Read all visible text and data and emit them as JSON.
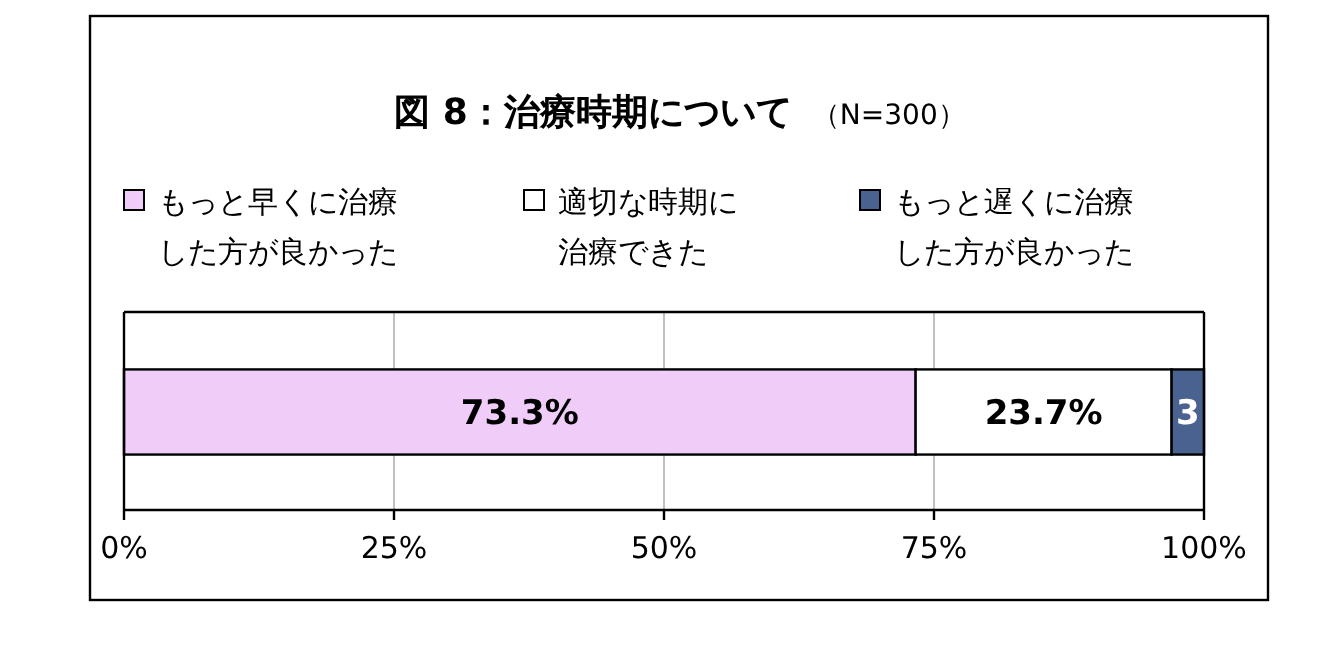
{
  "chart_data": {
    "type": "bar",
    "orientation": "horizontal",
    "stacked": true,
    "title": "図 8：治療時期について",
    "subtitle": "（N=300）",
    "categories": [
      null
    ],
    "series": [
      {
        "name": "もっと早くに治療した方が良かった",
        "color": "#f0ccf8",
        "values": [
          73.3
        ],
        "value_labels": [
          "73.3%"
        ]
      },
      {
        "name": "適切な時期に治療できた",
        "color": "#ffffff",
        "values": [
          23.7
        ],
        "value_labels": [
          "23.7%"
        ]
      },
      {
        "name": "もっと遅くに治療した方が良かった",
        "color": "#4a6290",
        "values": [
          3
        ],
        "value_labels": [
          "3"
        ]
      }
    ],
    "xlim": [
      0,
      100
    ],
    "xticks": [
      {
        "value": 0,
        "label": "0%"
      },
      {
        "value": 25,
        "label": "25%"
      },
      {
        "value": 50,
        "label": "50%"
      },
      {
        "value": 75,
        "label": "75%"
      },
      {
        "value": 100,
        "label": "100%"
      }
    ],
    "grid": "x",
    "legend": "top"
  }
}
